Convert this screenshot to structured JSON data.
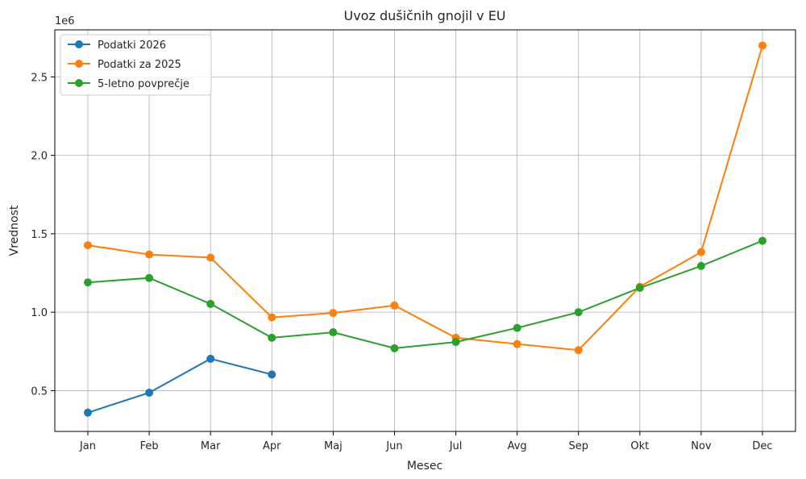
{
  "chart_data": {
    "type": "line",
    "title": "Uvoz dušičnih gnojil v EU",
    "xlabel": "Mesec",
    "ylabel": "Vrednost",
    "y_offset_label": "1e6",
    "categories": [
      "Jan",
      "Feb",
      "Mar",
      "Apr",
      "Maj",
      "Jun",
      "Jul",
      "Avg",
      "Sep",
      "Okt",
      "Nov",
      "Dec"
    ],
    "ylim": [
      0.24,
      2.8
    ],
    "yticks": [
      0.5,
      1.0,
      1.5,
      2.0,
      2.5
    ],
    "ytick_labels": [
      "0.5",
      "1.0",
      "1.5",
      "2.0",
      "2.5"
    ],
    "y_scale_factor": 1000000,
    "grid": true,
    "legend_position": "top-left",
    "series": [
      {
        "name": "Podatki 2026",
        "color": "#1f77b4",
        "values": [
          360000,
          487000,
          703000,
          603000,
          null,
          null,
          null,
          null,
          null,
          null,
          null,
          null
        ]
      },
      {
        "name": "Podatki za 2025",
        "color": "#ff7f0e",
        "values": [
          1427000,
          1368000,
          1348000,
          967000,
          995000,
          1043000,
          837000,
          797000,
          758000,
          1162000,
          1383000,
          2700000
        ]
      },
      {
        "name": "5-letno povprečje",
        "color": "#2ca02c",
        "values": [
          1190000,
          1218000,
          1053000,
          837000,
          872000,
          770000,
          810000,
          900000,
          1000000,
          1155000,
          1295000,
          1455000
        ]
      }
    ]
  }
}
